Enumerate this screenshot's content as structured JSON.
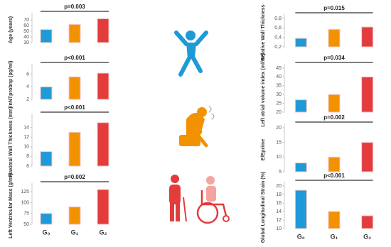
{
  "chart_data": [
    {
      "type": "bar",
      "ylabel": "Age (years)",
      "annotation": "p=0.003",
      "values": [
        53,
        62,
        72
      ],
      "colors": [
        "#1e9ad6",
        "#f39200",
        "#e23c3c"
      ],
      "ylim": [
        30,
        75
      ],
      "yticks": [
        30,
        40,
        50,
        60,
        70
      ]
    },
    {
      "type": "bar",
      "ylabel": "lnNTprobnp (pg/ml)",
      "annotation": "p<0.001",
      "values": [
        4,
        5.6,
        6.2
      ],
      "colors": [
        "#1e9ad6",
        "#f39200",
        "#e23c3c"
      ],
      "ylim": [
        2,
        7
      ],
      "yticks": [
        2,
        4,
        6
      ]
    },
    {
      "type": "bar",
      "ylabel": "Maximal Wall Thickness (mm)",
      "annotation": "p<0.001",
      "values": [
        9,
        13,
        15
      ],
      "colors": [
        "#1e9ad6",
        "#f39200",
        "#e23c3c"
      ],
      "ylim": [
        6,
        16
      ],
      "yticks": [
        6,
        8,
        10,
        12,
        14
      ]
    },
    {
      "type": "bar",
      "ylabel": "Left Ventricular Mass (g/m²)",
      "annotation": "p=0.002",
      "categories": [
        "G₀",
        "G₁",
        "G₂"
      ],
      "values": [
        75,
        90,
        130
      ],
      "colors": [
        "#1e9ad6",
        "#f39200",
        "#e23c3c"
      ],
      "ylim": [
        50,
        135
      ],
      "yticks": [
        50,
        75,
        100,
        125
      ]
    },
    {
      "type": "bar",
      "ylabel": "Relative Wall Thickness",
      "annotation": "p=0.015",
      "values": [
        0.38,
        0.57,
        0.62
      ],
      "colors": [
        "#1e9ad6",
        "#f39200",
        "#e23c3c"
      ],
      "ylim": [
        0.2,
        0.8
      ],
      "yticks": [
        {
          "value": 0.2,
          "label": "0,2"
        },
        {
          "value": 0.4,
          "label": "0,4"
        },
        {
          "value": 0.6,
          "label": "0,6"
        },
        {
          "value": 0.8,
          "label": "0,8"
        }
      ]
    },
    {
      "type": "bar",
      "ylabel": "Left atrial volume index (ml/m²)",
      "annotation": "p=0.034",
      "values": [
        27,
        30,
        40
      ],
      "colors": [
        "#1e9ad6",
        "#f39200",
        "#e23c3c"
      ],
      "ylim": [
        20,
        45
      ],
      "yticks": [
        20,
        25,
        30,
        35,
        40,
        45
      ]
    },
    {
      "type": "bar",
      "ylabel": "E/Eprime",
      "annotation": "p=0.002",
      "values": [
        8,
        10,
        15
      ],
      "colors": [
        "#1e9ad6",
        "#f39200",
        "#e23c3c"
      ],
      "ylim": [
        5,
        20
      ],
      "yticks": [
        5,
        10,
        15,
        20
      ]
    },
    {
      "type": "bar",
      "ylabel": "Global Longitudinal Strain (%)",
      "annotation": "p<0.001",
      "categories": [
        "G₀",
        "G₁",
        "G₂"
      ],
      "values": [
        19,
        14,
        13
      ],
      "colors": [
        "#1e9ad6",
        "#f39200",
        "#e23c3c"
      ],
      "ylim": [
        10,
        20
      ],
      "yticks": [
        10,
        12,
        14,
        16,
        18,
        20
      ]
    }
  ]
}
